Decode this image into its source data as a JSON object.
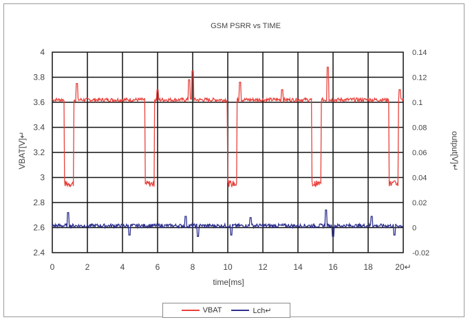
{
  "chart_data": {
    "type": "line",
    "title": "GSM PSRR vs TIME",
    "xlabel": "time[ms]",
    "ylabel_left": "VBAT[V]↵",
    "ylabel_right": "output[V]↵",
    "xlim": [
      0,
      20
    ],
    "ylim_left": [
      2.4,
      4.0
    ],
    "ylim_right": [
      -0.02,
      0.14
    ],
    "x_ticks": [
      "0",
      "2",
      "4",
      "6",
      "8",
      "10",
      "12",
      "14",
      "16",
      "18",
      "20↵"
    ],
    "y_ticks_left": [
      "2.4",
      "2.6",
      "2.8",
      "3",
      "3.2",
      "3.4",
      "3.6",
      "3.8",
      "4"
    ],
    "y_ticks_right": [
      "-0.02",
      "0",
      "0.02",
      "0.04",
      "0.06",
      "0.08",
      "0.1",
      "0.12",
      "0.14"
    ],
    "grid": true,
    "legend_position": "bottom-center",
    "series": [
      {
        "name": "VBAT",
        "axis": "left",
        "color": "#e8403a",
        "baseline": 3.62,
        "dip_value": 2.95,
        "dips_ms": [
          [
            0.7,
            1.2
          ],
          [
            5.3,
            5.8
          ],
          [
            10.0,
            10.5
          ],
          [
            14.8,
            15.3
          ],
          [
            19.2,
            19.7
          ]
        ],
        "spikes": [
          [
            1.4,
            3.75
          ],
          [
            6.0,
            3.7
          ],
          [
            7.8,
            3.78
          ],
          [
            8.0,
            3.85
          ],
          [
            10.7,
            3.76
          ],
          [
            13.1,
            3.7
          ],
          [
            15.7,
            3.88
          ],
          [
            19.8,
            3.7
          ]
        ]
      },
      {
        "name": "Lch↵",
        "axis": "right",
        "color": "#2c2f8c",
        "baseline": 0.0015,
        "spikes": [
          [
            0.9,
            0.012
          ],
          [
            4.4,
            -0.006
          ],
          [
            7.6,
            0.009
          ],
          [
            8.3,
            -0.007
          ],
          [
            10.2,
            -0.006
          ],
          [
            11.3,
            0.008
          ],
          [
            15.6,
            0.014
          ],
          [
            16.0,
            -0.007
          ],
          [
            18.2,
            0.009
          ],
          [
            19.5,
            -0.006
          ]
        ]
      }
    ]
  }
}
